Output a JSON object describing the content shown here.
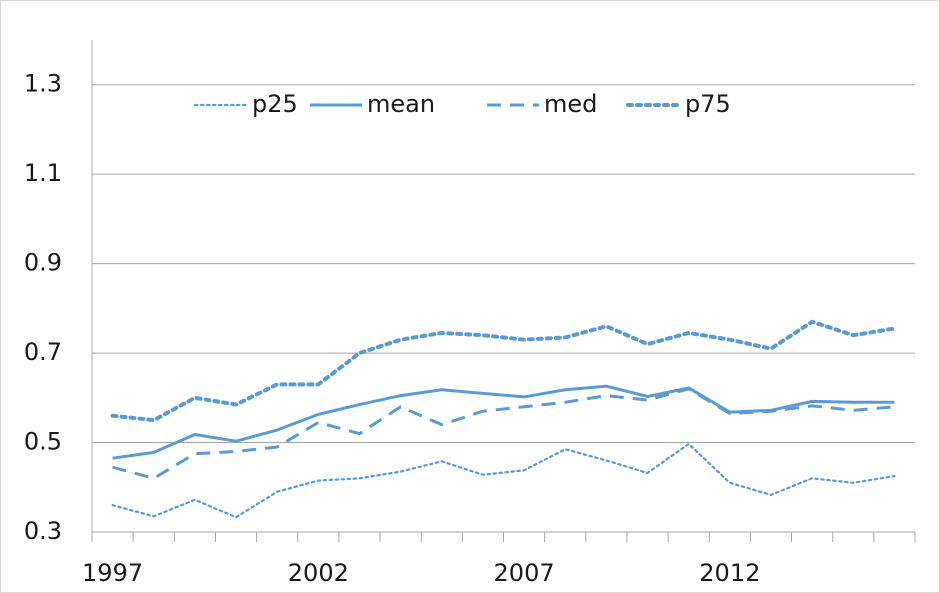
{
  "chart_data": {
    "type": "line",
    "categories": [
      1997,
      null,
      null,
      null,
      null,
      2002,
      null,
      null,
      null,
      null,
      2007,
      null,
      null,
      null,
      null,
      2012,
      null,
      null,
      null,
      null
    ],
    "series": [
      {
        "name": "p25",
        "color": "#5b9bd5",
        "dash": "dot-fine",
        "values": [
          0.36,
          0.335,
          0.372,
          0.333,
          0.39,
          0.415,
          0.42,
          0.435,
          0.458,
          0.428,
          0.438,
          0.485,
          0.46,
          0.432,
          0.497,
          0.41,
          0.383,
          0.42,
          0.41,
          0.425
        ]
      },
      {
        "name": "mean",
        "color": "#5b9bd5",
        "dash": "solid",
        "values": [
          0.465,
          0.478,
          0.518,
          0.503,
          0.528,
          0.563,
          0.585,
          0.605,
          0.618,
          0.61,
          0.602,
          0.618,
          0.626,
          0.603,
          0.622,
          0.568,
          0.572,
          0.592,
          0.59,
          0.59
        ]
      },
      {
        "name": "med",
        "color": "#5b9bd5",
        "dash": "dash",
        "values": [
          0.445,
          0.42,
          0.475,
          0.48,
          0.49,
          0.545,
          0.52,
          0.58,
          0.54,
          0.57,
          0.58,
          0.59,
          0.605,
          0.595,
          0.62,
          0.565,
          0.57,
          0.582,
          0.572,
          0.58
        ]
      },
      {
        "name": "p75",
        "color": "#5b9bd5",
        "dash": "dot",
        "values": [
          0.56,
          0.55,
          0.6,
          0.585,
          0.63,
          0.63,
          0.7,
          0.73,
          0.745,
          0.74,
          0.73,
          0.735,
          0.76,
          0.72,
          0.745,
          0.73,
          0.71,
          0.77,
          0.74,
          0.755
        ]
      }
    ],
    "ylim": [
      0.3,
      1.4
    ],
    "yticks": [
      0.3,
      0.5,
      0.7,
      0.9,
      1.1,
      1.3
    ],
    "grid": true,
    "legend": "top"
  }
}
